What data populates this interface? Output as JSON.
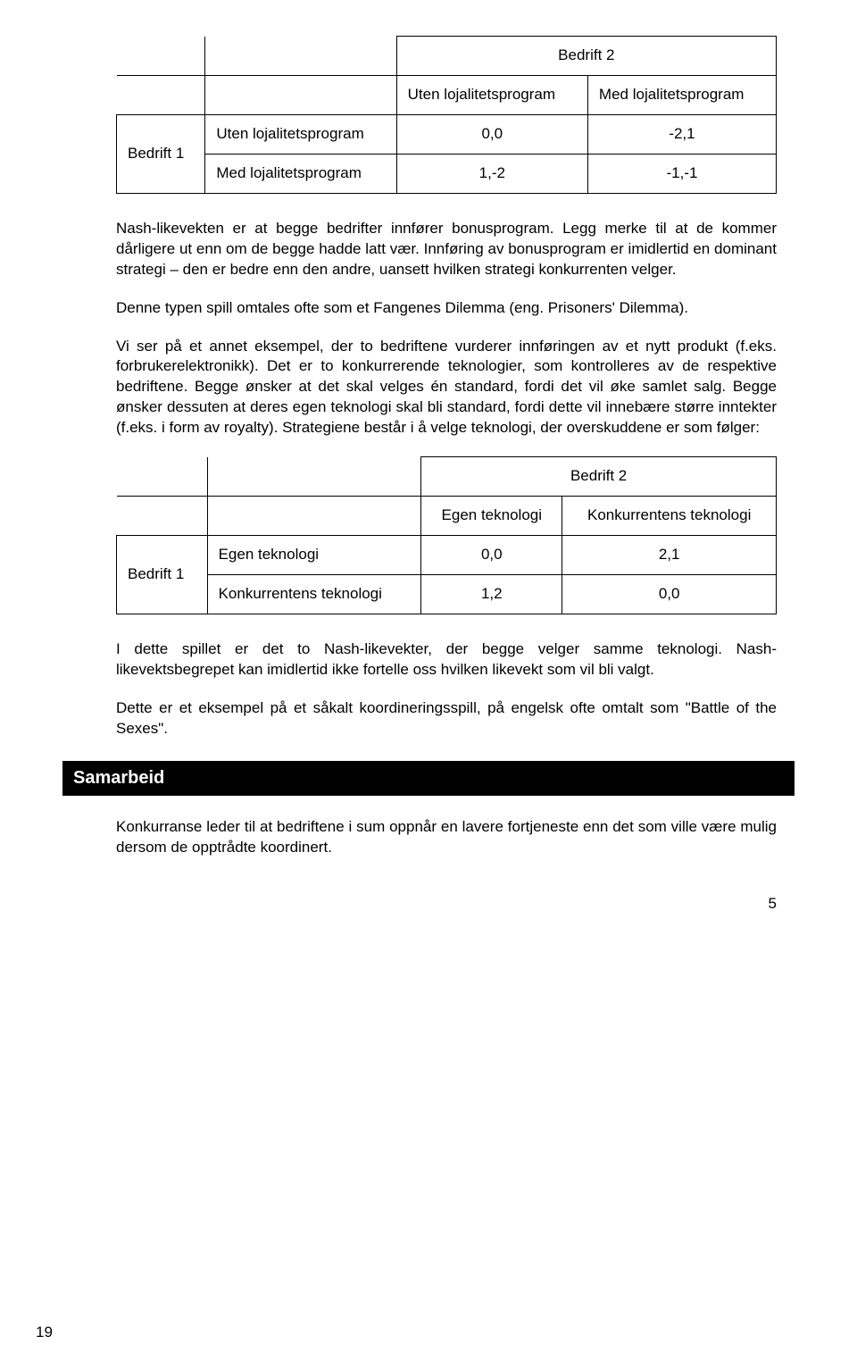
{
  "table1": {
    "header_title": "Bedrift 2",
    "col1": "Uten lojalitetsprogram",
    "col2": "Med lojalitetsprogram",
    "row_label": "Bedrift 1",
    "rows": [
      {
        "label": "Uten lojalitetsprogram",
        "c1": "0,0",
        "c2": "-2,1"
      },
      {
        "label": "Med lojalitetsprogram",
        "c1": "1,-2",
        "c2": "-1,-1"
      }
    ]
  },
  "para1": "Nash-likevekten er at begge bedrifter innfører bonusprogram. Legg merke til at de kommer dårligere ut enn om de begge hadde latt vær. Innføring av bonusprogram er imidlertid en dominant strategi – den er bedre enn den andre, uansett hvilken strategi konkurrenten velger.",
  "para2": "Denne typen spill omtales ofte som et Fangenes Dilemma (eng. Prisoners' Dilemma).",
  "para3": "Vi ser på et annet eksempel, der to bedriftene vurderer innføringen av et nytt produkt (f.eks. forbrukerelektronikk). Det er to konkurrerende teknologier, som kontrolleres av de respektive bedriftene. Begge ønsker at det skal velges én standard, fordi det vil øke samlet salg. Begge ønsker dessuten at deres egen teknologi skal bli standard, fordi dette vil innebære større inntekter (f.eks. i form av royalty). Strategiene består i å velge teknologi, der overskuddene er som følger:",
  "table2": {
    "header_title": "Bedrift 2",
    "col1": "Egen teknologi",
    "col2": "Konkurrentens teknologi",
    "row_label": "Bedrift 1",
    "rows": [
      {
        "label": "Egen teknologi",
        "c1": "0,0",
        "c2": "2,1"
      },
      {
        "label": "Konkurrentens teknologi",
        "c1": "1,2",
        "c2": "0,0"
      }
    ]
  },
  "para4": "I dette spillet er det to Nash-likevekter, der begge velger samme teknologi. Nash-likevektsbegrepet kan imidlertid ikke fortelle oss hvilken likevekt som vil bli valgt.",
  "para5": "Dette er et eksempel på et såkalt koordineringsspill, på engelsk ofte omtalt som \"Battle of the Sexes\".",
  "section1": "Samarbeid",
  "para6": "Konkurranse leder til at bedriftene i sum oppnår en lavere fortjeneste enn det som ville være mulig dersom de opptrådte koordinert.",
  "page_right": "5",
  "page_left": "19"
}
